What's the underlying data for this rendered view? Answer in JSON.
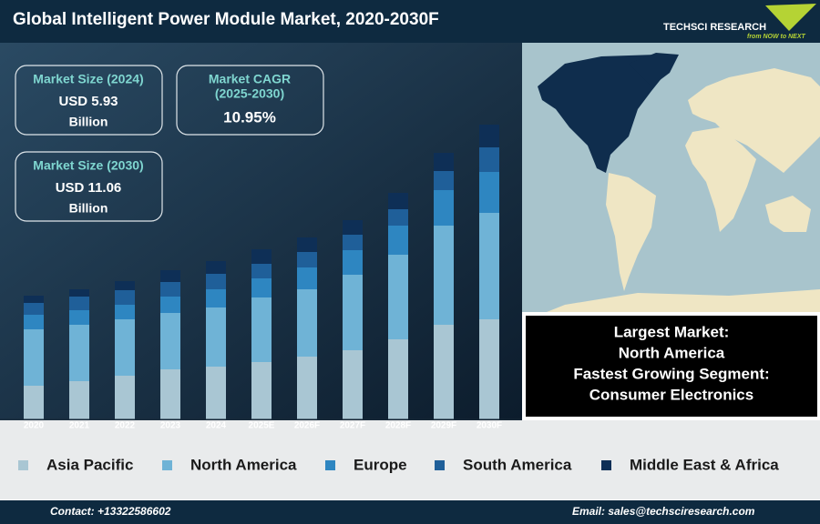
{
  "header": {
    "title": "Global Intelligent Power Module Market, 2020-2030F",
    "logo": "TECHSCI RESEARCH",
    "logo_tagline": "from NOW to NEXT"
  },
  "kpis": [
    {
      "label": "Market Size (2024)",
      "value": "USD 5.93",
      "unit": "Billion"
    },
    {
      "label": "Market CAGR",
      "period": "(2025-2030)",
      "value": "10.95%"
    },
    {
      "label": "Market Size (2030)",
      "value": "USD 11.06",
      "unit": "Billion"
    }
  ],
  "highlights": [
    "Largest Market:",
    "North America",
    "Fastest Growing Segment:",
    "Consumer Electronics"
  ],
  "footer": {
    "contact": "Contact: +13322586602",
    "email": "Email: sales@techsciresearch.com"
  },
  "chart_data": {
    "type": "stacked-bar",
    "categories": [
      "2020",
      "2021",
      "2022",
      "2023",
      "2024",
      "2025E",
      "2026F",
      "2027F",
      "2028F",
      "2029F",
      "2030F"
    ],
    "series": [
      {
        "name": "Asia Pacific",
        "color": "#a9c6d3",
        "values": [
          37,
          42,
          48,
          55,
          58,
          63,
          69,
          76,
          88,
          104,
          110
        ]
      },
      {
        "name": "North America",
        "color": "#6fb3d6",
        "values": [
          62,
          62,
          62,
          62,
          65,
          71,
          74,
          83,
          93,
          109,
          117
        ]
      },
      {
        "name": "Europe",
        "color": "#2e86c1",
        "values": [
          16,
          16,
          16,
          18,
          20,
          21,
          24,
          27,
          32,
          39,
          45
        ]
      },
      {
        "name": "South America",
        "color": "#1f5f99",
        "values": [
          13,
          15,
          16,
          16,
          17,
          16,
          17,
          17,
          18,
          21,
          27
        ]
      },
      {
        "name": "Middle East & Africa",
        "color": "#0e2f56",
        "values": [
          8,
          8,
          10,
          13,
          14,
          16,
          16,
          16,
          18,
          20,
          25
        ]
      }
    ]
  }
}
